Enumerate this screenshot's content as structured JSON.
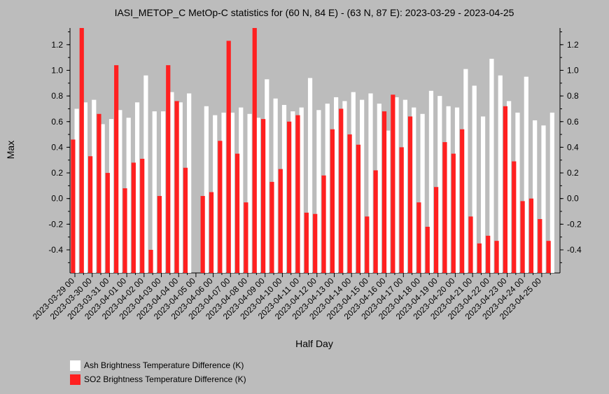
{
  "chart_data": {
    "type": "bar",
    "title": "IASI_METOP_C MetOp-C statistics for (60 N, 84 E) - (63 N, 87 E): 2023-03-29 - 2023-04-25",
    "xlabel": "Half Day",
    "ylabel": "Max",
    "ylim": [
      -0.58,
      1.33
    ],
    "yticks": [
      -0.4,
      -0.2,
      0.0,
      0.2,
      0.4,
      0.6,
      0.8,
      1.0,
      1.2
    ],
    "ytick_labels": [
      "-0.4",
      "-0.2",
      "0.0",
      "0.2",
      "0.4",
      "0.6",
      "0.8",
      "1.0",
      "1.2"
    ],
    "x_tick_labels": [
      "2023-03-29 00",
      "2023-03-30 00",
      "2023-03-31 00",
      "2023-04-01 00",
      "2023-04-02 00",
      "2023-04-03 00",
      "2023-04-04 00",
      "2023-04-05 00",
      "2023-04-06 00",
      "2023-04-07 00",
      "2023-04-08 00",
      "2023-04-09 00",
      "2023-04-10 00",
      "2023-04-11 00",
      "2023-04-12 00",
      "2023-04-13 00",
      "2023-04-14 00",
      "2023-04-15 00",
      "2023-04-16 00",
      "2023-04-17 00",
      "2023-04-18 00",
      "2023-04-19 00",
      "2023-04-20 00",
      "2023-04-21 00",
      "2023-04-22 00",
      "2023-04-23 00",
      "2023-04-24 00",
      "2023-04-25 00"
    ],
    "x_tick_start": "2023-03-29 00:00",
    "x_tick_step_hours": 24,
    "bar_step_hours": 12,
    "legend_position": "bottom-left",
    "series": [
      {
        "name": "Ash Brightness Temperature Difference (K)",
        "color": "#ffffff",
        "values": [
          0.7,
          0.75,
          0.77,
          0.58,
          0.62,
          0.69,
          0.63,
          0.75,
          0.96,
          0.68,
          0.68,
          0.83,
          0.75,
          0.82,
          null,
          0.72,
          0.65,
          0.67,
          0.67,
          0.71,
          0.66,
          0.63,
          0.93,
          0.78,
          0.73,
          0.68,
          0.71,
          0.94,
          0.69,
          0.74,
          0.79,
          0.76,
          0.83,
          0.77,
          0.82,
          0.74,
          0.53,
          0.79,
          0.77,
          0.71,
          0.66,
          0.84,
          0.8,
          0.72,
          0.71,
          1.01,
          0.88,
          0.64,
          1.09,
          0.96,
          0.76,
          0.67,
          0.95,
          0.61,
          0.57,
          0.67
        ]
      },
      {
        "name": "SO2 Brightness Temperature Difference (K)",
        "color": "#ff2020",
        "values": [
          0.46,
          1.33,
          0.33,
          0.66,
          0.2,
          1.04,
          0.08,
          0.28,
          0.31,
          -0.4,
          0.02,
          1.04,
          0.76,
          0.24,
          null,
          0.02,
          0.05,
          0.45,
          1.23,
          0.35,
          -0.03,
          1.33,
          0.62,
          0.13,
          0.23,
          0.6,
          0.65,
          -0.11,
          -0.12,
          0.18,
          0.54,
          0.7,
          0.5,
          0.42,
          -0.14,
          0.22,
          0.68,
          0.81,
          0.4,
          0.64,
          -0.03,
          -0.22,
          0.09,
          0.44,
          0.35,
          0.54,
          -0.14,
          -0.35,
          -0.29,
          -0.33,
          0.72,
          0.29,
          -0.02,
          0.0,
          -0.16,
          -0.33
        ]
      }
    ]
  }
}
